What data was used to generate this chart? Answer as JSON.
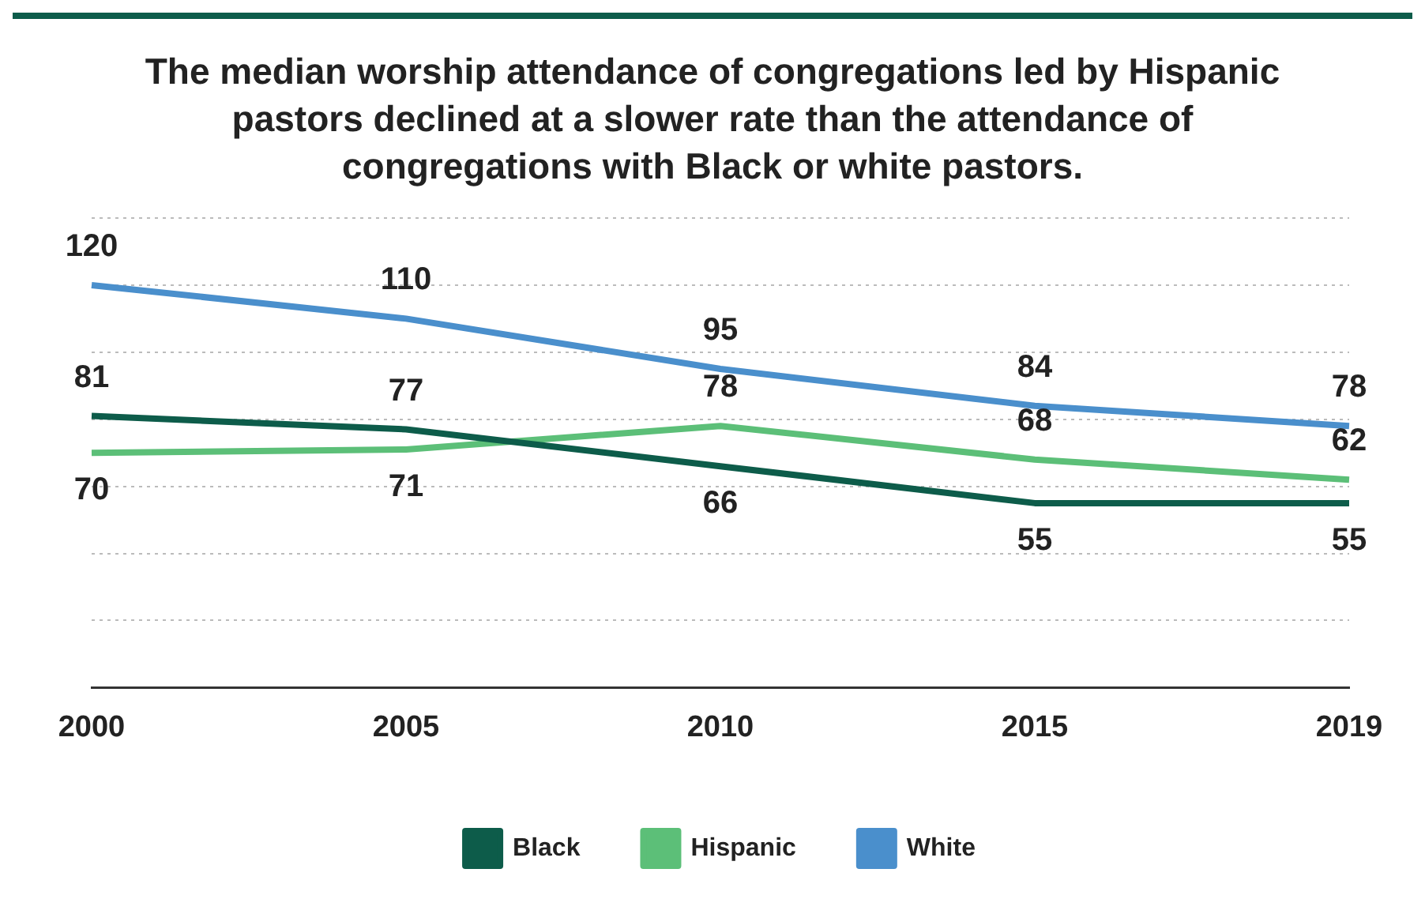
{
  "chart_data": {
    "type": "line",
    "title": "The median worship attendance of congregations led by Hispanic pastors declined at a slower rate than the attendance of congregations with Black or white pastors.",
    "categories": [
      "2000",
      "2005",
      "2010",
      "2015",
      "2019"
    ],
    "series": [
      {
        "name": "Black",
        "color": "#0d5c4a",
        "values": [
          81,
          77,
          66,
          55,
          55
        ]
      },
      {
        "name": "Hispanic",
        "color": "#5cbf78",
        "values": [
          70,
          71,
          78,
          68,
          62
        ]
      },
      {
        "name": "White",
        "color": "#4a8fcc",
        "values": [
          120,
          110,
          95,
          84,
          78
        ]
      }
    ],
    "ylim": [
      0,
      140
    ],
    "yticks": [
      {
        "value": 0,
        "label": null
      },
      {
        "value": 20,
        "label": null
      },
      {
        "value": 40,
        "label": null
      },
      {
        "value": 60,
        "label": null
      },
      {
        "value": 80,
        "label": null
      },
      {
        "value": 100,
        "label": null
      },
      {
        "value": 120,
        "label": null
      },
      {
        "value": 140,
        "label": null
      }
    ],
    "tick_labels": "x",
    "grid": "y",
    "legend": "bottom",
    "data_labels": true,
    "marker": "none",
    "line_style": "solid"
  }
}
